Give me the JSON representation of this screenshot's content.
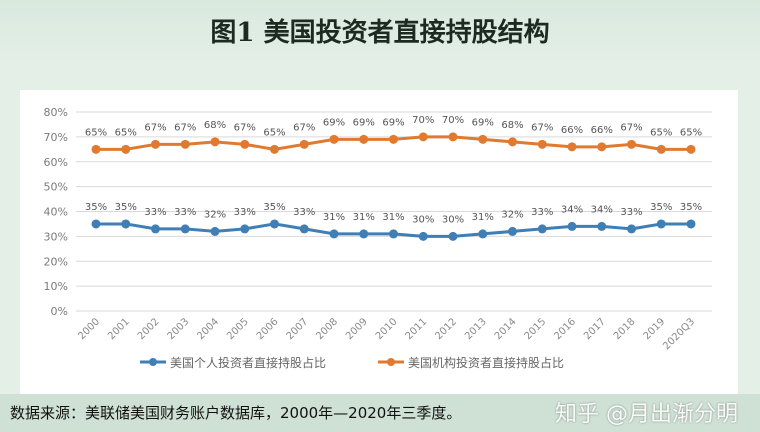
{
  "title": "图1  美国投资者直接持股结构",
  "source": "数据来源：美联储美国财务账户数据库，2000年—2020年三季度。",
  "watermark": "知乎 @月出渐分明",
  "chart_data": {
    "type": "line",
    "title": "图1  美国投资者直接持股结构",
    "x": [
      "2000",
      "2001",
      "2002",
      "2003",
      "2004",
      "2005",
      "2006",
      "2007",
      "2008",
      "2009",
      "2010",
      "2011",
      "2012",
      "2013",
      "2014",
      "2015",
      "2016",
      "2017",
      "2018",
      "2019",
      "2020Q3"
    ],
    "series": [
      {
        "name": "美国个人投资者直接持股占比",
        "color": "#3f7fb5",
        "values": [
          35,
          35,
          33,
          33,
          32,
          33,
          35,
          33,
          31,
          31,
          31,
          30,
          30,
          31,
          32,
          33,
          34,
          34,
          33,
          35,
          35
        ]
      },
      {
        "name": "美国机构投资者直接持股占比",
        "color": "#e07a30",
        "values": [
          65,
          65,
          67,
          67,
          68,
          67,
          65,
          67,
          69,
          69,
          69,
          70,
          70,
          69,
          68,
          67,
          66,
          66,
          67,
          65,
          65
        ]
      }
    ],
    "yticks": [
      "0%",
      "10%",
      "20%",
      "30%",
      "40%",
      "50%",
      "60%",
      "70%",
      "80%"
    ],
    "ylim": [
      0,
      80
    ],
    "grid": true,
    "legend": "bottom"
  }
}
